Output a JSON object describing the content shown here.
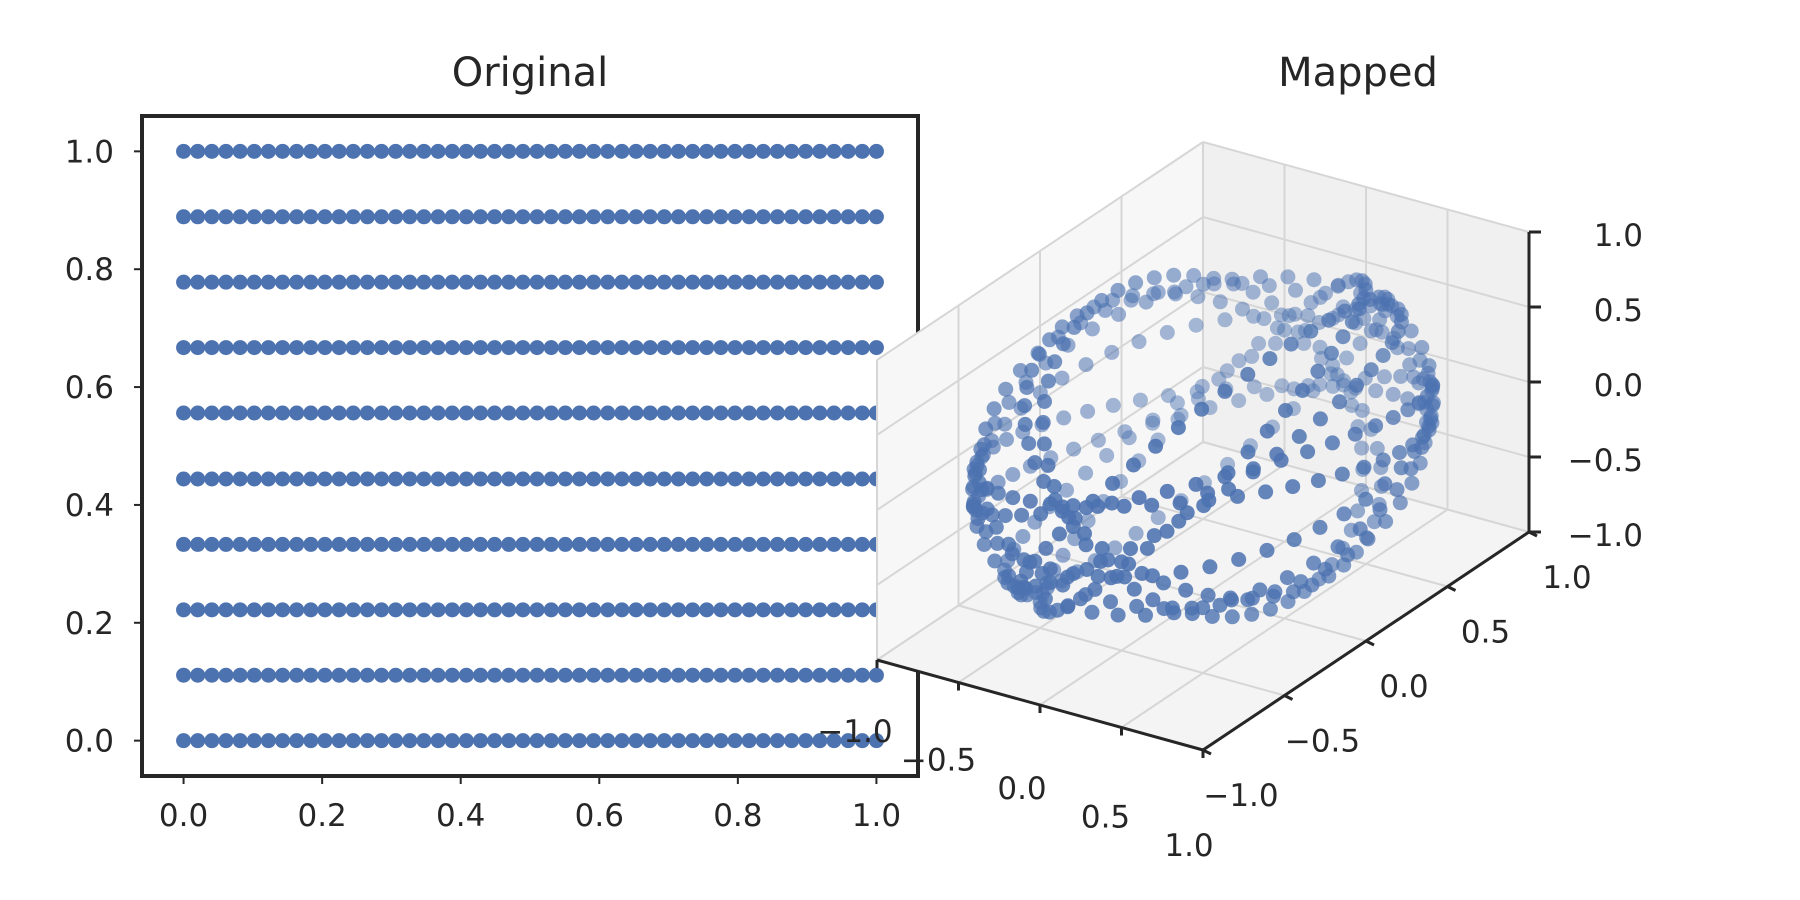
{
  "chart_data": [
    {
      "type": "scatter",
      "title": "Original",
      "xlabel": "",
      "ylabel": "",
      "xlim": [
        -0.06,
        1.06
      ],
      "ylim": [
        -0.06,
        1.06
      ],
      "xticks": [
        "0.0",
        "0.2",
        "0.4",
        "0.6",
        "0.8",
        "1.0"
      ],
      "yticks": [
        "0.0",
        "0.2",
        "0.4",
        "0.6",
        "0.8",
        "1.0"
      ],
      "grid": false,
      "marker_color": "#4c72b0",
      "points_per_row": 50,
      "x_range": [
        0,
        1
      ],
      "rows_y": [
        0.0,
        0.111,
        0.222,
        0.333,
        0.444,
        0.556,
        0.667,
        0.778,
        0.889,
        1.0
      ]
    },
    {
      "type": "scatter",
      "projection": "3d",
      "title": "Mapped",
      "xlabel": "",
      "ylabel": "",
      "zlabel": "",
      "xlim": [
        -1,
        1
      ],
      "ylim": [
        -1,
        1
      ],
      "zlim": [
        -1,
        1
      ],
      "xticks": [
        "−1.0",
        "−0.5",
        "0.0",
        "0.5",
        "1.0"
      ],
      "yticks": [
        "−1.0",
        "−0.5",
        "0.0",
        "0.5",
        "1.0"
      ],
      "zticks": [
        "−1.0",
        "−0.5",
        "0.0",
        "0.5",
        "1.0"
      ],
      "grid": true,
      "marker_color": "#4c72b0",
      "description_rings": "10 tilted circles on the unit sphere, one per row of the original grid",
      "ring_count": 10,
      "points_per_ring": 50
    }
  ]
}
